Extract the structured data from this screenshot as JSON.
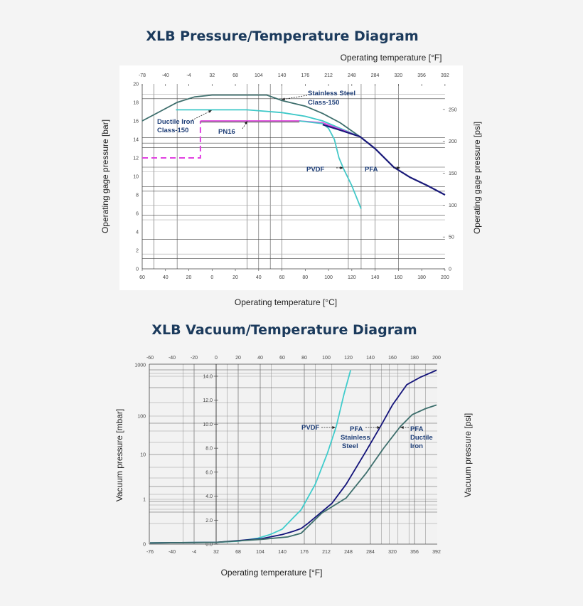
{
  "chart_data": [
    {
      "type": "line",
      "title": "XLB Pressure/Temperature Diagram",
      "xlabel": "Operating temperature [°C]",
      "x2label": "Operating temperature [°F]",
      "ylabel": "Operating gage pressure [bar]",
      "y2label": "Operating gage pressure [psi]",
      "xlim": [
        -60,
        200
      ],
      "ylim": [
        0,
        20
      ],
      "grid": true,
      "x_ticks": [
        "60",
        "40",
        "20",
        "0",
        "20",
        "40",
        "60",
        "80",
        "100",
        "120",
        "140",
        "160",
        "180",
        "200"
      ],
      "x2_ticks": [
        "-78",
        "-40",
        "-4",
        "32",
        "68",
        "104",
        "140",
        "176",
        "212",
        "248",
        "284",
        "320",
        "356",
        "392"
      ],
      "y_ticks": [
        "0",
        "2",
        "4",
        "6",
        "8",
        "10",
        "12",
        "14",
        "16",
        "18",
        "20"
      ],
      "y2_ticks": [
        "0",
        "50",
        "100",
        "150",
        "200",
        "250"
      ],
      "series": [
        {
          "name": "Stainless Steel Class-150",
          "color": "#3d6e6c",
          "points": [
            [
              -60,
              16
            ],
            [
              -45,
              17
            ],
            [
              -30,
              18
            ],
            [
              -15,
              18.6
            ],
            [
              0,
              18.8
            ],
            [
              47,
              18.8
            ],
            [
              60,
              18.2
            ],
            [
              80,
              17.6
            ],
            [
              95,
              16.8
            ],
            [
              110,
              15.8
            ],
            [
              127,
              14.3
            ],
            [
              140,
              13.0
            ],
            [
              156,
              11.0
            ],
            [
              170,
              9.9
            ],
            [
              185,
              9.0
            ],
            [
              200,
              8.0
            ]
          ]
        },
        {
          "name": "Ductile Iron Class-150",
          "color": "#3cc8c8",
          "points": [
            [
              -31,
              17.2
            ],
            [
              30,
              17.2
            ],
            [
              60,
              16.9
            ],
            [
              80,
              16.5
            ],
            [
              95,
              16.0
            ],
            [
              110,
              15.2
            ],
            [
              127,
              14.3
            ]
          ]
        },
        {
          "name": "PN16",
          "color": "#e040e0",
          "points": [
            [
              -60,
              12
            ],
            [
              -10,
              12
            ],
            [
              -10,
              16
            ],
            [
              75,
              16
            ],
            [
              95,
              15.8
            ],
            [
              110,
              15.1
            ],
            [
              127,
              14.3
            ]
          ]
        },
        {
          "name": "PVDF",
          "color": "#45c8c8",
          "points": [
            [
              75,
              16
            ],
            [
              95,
              15.7
            ],
            [
              100,
              15.2
            ],
            [
              105,
              14
            ],
            [
              109,
              12
            ],
            [
              113,
              10.8
            ],
            [
              120,
              9
            ],
            [
              128,
              6.5
            ]
          ]
        },
        {
          "name": "PFA",
          "color": "#1a1a7a",
          "points": [
            [
              95,
              15.6
            ],
            [
              110,
              15.0
            ],
            [
              127,
              14.3
            ],
            [
              140,
              13.0
            ],
            [
              156,
              11.0
            ],
            [
              170,
              9.9
            ],
            [
              185,
              9.0
            ],
            [
              200,
              8.0
            ]
          ]
        }
      ],
      "annotations": [
        {
          "lines": [
            "Stainless Steel",
            "Class-150"
          ]
        },
        {
          "lines": [
            "Ductile Iron",
            "Class-150"
          ]
        },
        {
          "lines": [
            "PN16"
          ]
        },
        {
          "lines": [
            "PVDF"
          ]
        },
        {
          "lines": [
            "PFA"
          ]
        }
      ]
    },
    {
      "type": "line",
      "title": "XLB Vacuum/Temperature Diagram",
      "xlabel": "Operating temperature [°F]",
      "ylabel": "Vacuum pressure [mbar]",
      "y2label": "Vacuum pressure [psi]",
      "xlim": [
        -60,
        200
      ],
      "ylim": [
        0,
        15
      ],
      "grid": true,
      "x_ticks_top": [
        "-60",
        "-40",
        "-20",
        "0",
        "20",
        "40",
        "60",
        "80",
        "100",
        "120",
        "140",
        "160",
        "180",
        "200"
      ],
      "x_ticks_bottom": [
        "-76",
        "-40",
        "-4",
        "32",
        "68",
        "104",
        "140",
        "176",
        "212",
        "248",
        "284",
        "320",
        "356",
        "392"
      ],
      "y_ticks_mbar": [
        "0",
        "1",
        "10",
        "100",
        "1000"
      ],
      "y_ticks_psi": [
        "0.0",
        "2.0",
        "4.0",
        "6.0",
        "8.0",
        "10.0",
        "12.0",
        "14.0"
      ],
      "series": [
        {
          "name": "PVDF",
          "color": "#40cccc",
          "points": [
            [
              -60,
              0.1
            ],
            [
              0,
              0.15
            ],
            [
              20,
              0.25
            ],
            [
              38,
              0.5
            ],
            [
              49,
              0.8
            ],
            [
              60,
              1.25
            ],
            [
              70,
              2.2
            ],
            [
              77,
              2.85
            ],
            [
              90,
              5.0
            ],
            [
              101,
              7.6
            ],
            [
              109,
              9.8
            ],
            [
              116,
              12.5
            ],
            [
              122,
              14.5
            ]
          ]
        },
        {
          "name": "PFA Stainless Steel",
          "color": "#14147a",
          "points": [
            [
              -60,
              0.1
            ],
            [
              0,
              0.15
            ],
            [
              41,
              0.45
            ],
            [
              60,
              0.8
            ],
            [
              70,
              1.07
            ],
            [
              77,
              1.3
            ],
            [
              83,
              1.7
            ],
            [
              105,
              3.4
            ],
            [
              118,
              5.0
            ],
            [
              135,
              7.6
            ],
            [
              149,
              9.8
            ],
            [
              160,
              11.6
            ],
            [
              173,
              13.3
            ],
            [
              185,
              13.9
            ],
            [
              200,
              14.5
            ]
          ]
        },
        {
          "name": "PFA Ductile Iron",
          "color": "#3d6e6c",
          "points": [
            [
              -60,
              0.1
            ],
            [
              0,
              0.15
            ],
            [
              41,
              0.4
            ],
            [
              65,
              0.6
            ],
            [
              77,
              0.9
            ],
            [
              96,
              2.6
            ],
            [
              118,
              3.85
            ],
            [
              136,
              5.9
            ],
            [
              152,
              8.0
            ],
            [
              167,
              9.8
            ],
            [
              178,
              10.8
            ],
            [
              190,
              11.3
            ],
            [
              200,
              11.6
            ]
          ]
        }
      ],
      "annotations": [
        {
          "lines": [
            "PVDF"
          ]
        },
        {
          "lines": [
            "PFA",
            "Stainless",
            "Steel"
          ]
        },
        {
          "lines": [
            "PFA",
            "Ductile",
            "Iron"
          ]
        }
      ]
    }
  ]
}
